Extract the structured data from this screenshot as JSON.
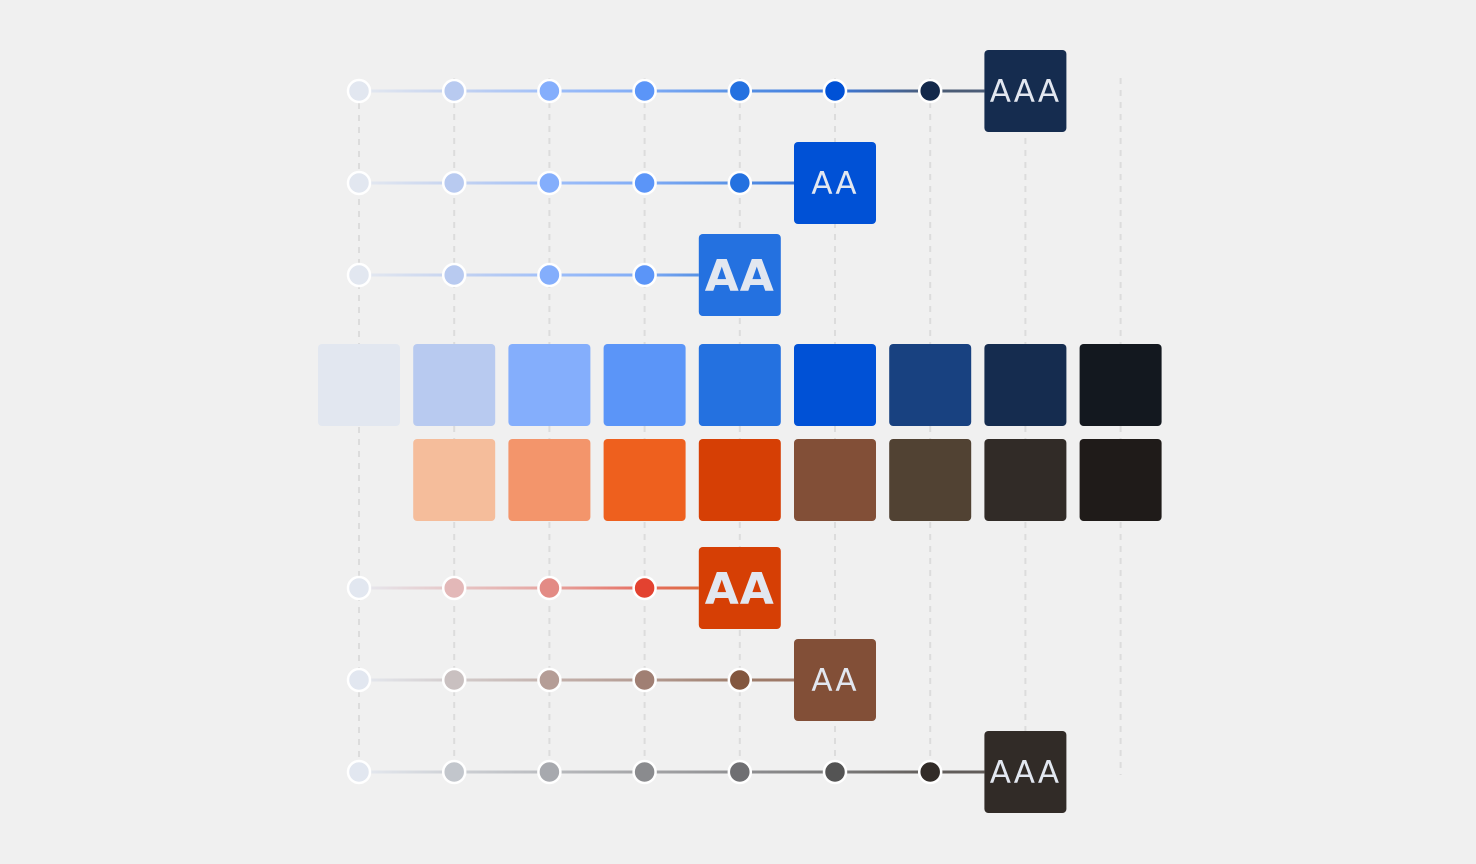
{
  "palettes": {
    "blue": [
      "#e2e7f0",
      "#b8caf0",
      "#84aefc",
      "#5b95f8",
      "#2471e0",
      "#0051d6",
      "#184180",
      "#152c4f",
      "#13181f"
    ],
    "warm": [
      null,
      "#f5bd9b",
      "#f3956b",
      "#ee601e",
      "#d63f05",
      "#824f37",
      "#514233",
      "#312b27",
      "#1f1b19"
    ]
  },
  "rows": [
    {
      "dots": [
        "#e2e7f0",
        "#b8caf0",
        "#84aefc",
        "#5b95f8",
        "#2471e0",
        "#0051d6",
        "#13294b"
      ],
      "badge": {
        "label": "AAA",
        "color": "#152c4f",
        "bold": false
      }
    },
    {
      "dots": [
        "#e2e7f0",
        "#b8caf0",
        "#84aefc",
        "#5b95f8",
        "#2471e0"
      ],
      "badge": {
        "label": "AA",
        "color": "#0051d6",
        "bold": false
      }
    },
    {
      "dots": [
        "#e2e7f0",
        "#b8caf0",
        "#84aefc",
        "#5b95f8"
      ],
      "badge": {
        "label": "AA",
        "color": "#2471e0",
        "bold": true
      }
    },
    {
      "dots": [
        "#e2e7f0",
        "#e3b8b8",
        "#e38b85",
        "#e34230"
      ],
      "badge": {
        "label": "AA",
        "color": "#d63f05",
        "bold": true
      }
    },
    {
      "dots": [
        "#e2e7f0",
        "#c9c0c0",
        "#b59d96",
        "#a07f73",
        "#83573f"
      ],
      "badge": {
        "label": "AA",
        "color": "#824f37",
        "bold": false
      }
    },
    {
      "dots": [
        "#e2e7f0",
        "#c2c6cc",
        "#a7a9ae",
        "#8a8b8e",
        "#6f6f72",
        "#545454",
        "#322c28"
      ],
      "badge": {
        "label": "AAA",
        "color": "#312b27",
        "bold": false
      }
    }
  ],
  "badge_text_color": "#e2e7f0",
  "gridline_color": "#dcdcdc"
}
